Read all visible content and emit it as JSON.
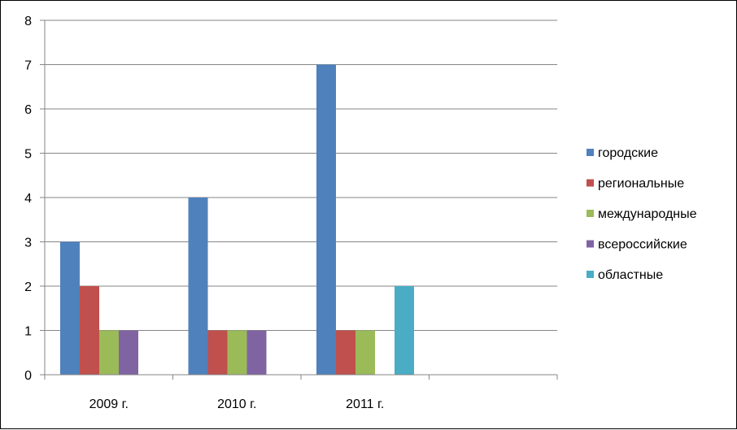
{
  "chart_data": {
    "type": "bar",
    "categories": [
      "2009 г.",
      "2010 г.",
      "2011 г.",
      ""
    ],
    "series": [
      {
        "name": "городские",
        "color": "#4F81BD",
        "values": [
          3,
          4,
          7,
          0
        ]
      },
      {
        "name": "региональные",
        "color": "#C0504D",
        "values": [
          2,
          1,
          1,
          0
        ]
      },
      {
        "name": "международные",
        "color": "#9BBB59",
        "values": [
          1,
          1,
          1,
          0
        ]
      },
      {
        "name": "всероссийские",
        "color": "#8064A2",
        "values": [
          1,
          1,
          0,
          0
        ]
      },
      {
        "name": "областные",
        "color": "#4BACC6",
        "values": [
          0,
          0,
          2,
          0
        ]
      }
    ],
    "ylim": [
      0,
      8
    ],
    "yticks": [
      0,
      1,
      2,
      3,
      4,
      5,
      6,
      7,
      8
    ],
    "grid": true,
    "legend": "right",
    "title": "",
    "xlabel": "",
    "ylabel": ""
  }
}
